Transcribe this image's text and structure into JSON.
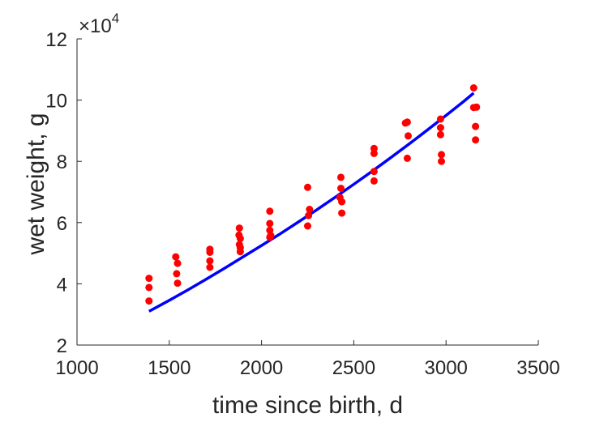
{
  "chart_data": {
    "type": "scatter",
    "title": "",
    "xlabel": "time since birth, d",
    "ylabel": "wet weight, g",
    "xlim": [
      1000,
      3500
    ],
    "ylim": [
      20000,
      120000
    ],
    "x_ticks": [
      1000,
      1500,
      2000,
      2500,
      3000,
      3500
    ],
    "x_tick_labels": [
      "1000",
      "1500",
      "2000",
      "2500",
      "3000",
      "3500"
    ],
    "y_ticks": [
      20000,
      40000,
      60000,
      80000,
      100000,
      120000
    ],
    "y_tick_labels": [
      "2",
      "4",
      "6",
      "8",
      "10",
      "12"
    ],
    "y_exponent": {
      "base": "×10",
      "power": "4"
    },
    "grid": false,
    "series": [
      {
        "kind": "points",
        "color": "#ff0000",
        "points": [
          [
            1390,
            41800
          ],
          [
            1390,
            38800
          ],
          [
            1390,
            34400
          ],
          [
            1535,
            48800
          ],
          [
            1545,
            46700
          ],
          [
            1540,
            43300
          ],
          [
            1545,
            40200
          ],
          [
            1720,
            51300
          ],
          [
            1720,
            50300
          ],
          [
            1720,
            47500
          ],
          [
            1720,
            45400
          ],
          [
            1880,
            58200
          ],
          [
            1878,
            55900
          ],
          [
            1885,
            54800
          ],
          [
            1880,
            52800
          ],
          [
            1885,
            51800
          ],
          [
            1885,
            50500
          ],
          [
            2045,
            63700
          ],
          [
            2045,
            59700
          ],
          [
            2045,
            57500
          ],
          [
            2050,
            55800
          ],
          [
            2045,
            55200
          ],
          [
            2250,
            71500
          ],
          [
            2260,
            64300
          ],
          [
            2255,
            62300
          ],
          [
            2250,
            58900
          ],
          [
            2430,
            74800
          ],
          [
            2430,
            71200
          ],
          [
            2425,
            68200
          ],
          [
            2435,
            66800
          ],
          [
            2435,
            63100
          ],
          [
            2610,
            84200
          ],
          [
            2610,
            82600
          ],
          [
            2610,
            76700
          ],
          [
            2610,
            73600
          ],
          [
            2780,
            92500
          ],
          [
            2790,
            92800
          ],
          [
            2795,
            88300
          ],
          [
            2790,
            81000
          ],
          [
            2970,
            93800
          ],
          [
            2970,
            91000
          ],
          [
            2970,
            88700
          ],
          [
            2975,
            82200
          ],
          [
            2975,
            80000
          ],
          [
            3150,
            104000
          ],
          [
            3150,
            97600
          ],
          [
            3165,
            97700
          ],
          [
            3160,
            91400
          ],
          [
            3160,
            87000
          ]
        ]
      },
      {
        "kind": "line",
        "color": "#0000ff",
        "x": [
          1390,
          1500,
          1600,
          1700,
          1800,
          1900,
          2000,
          2100,
          2200,
          2300,
          2400,
          2500,
          2600,
          2700,
          2800,
          2900,
          3000,
          3100,
          3150
        ],
        "y": [
          31000,
          34600,
          38000,
          41500,
          45100,
          48800,
          52500,
          56300,
          60200,
          64200,
          68300,
          72500,
          76800,
          81200,
          85700,
          90300,
          95000,
          99800,
          102300
        ]
      }
    ]
  }
}
